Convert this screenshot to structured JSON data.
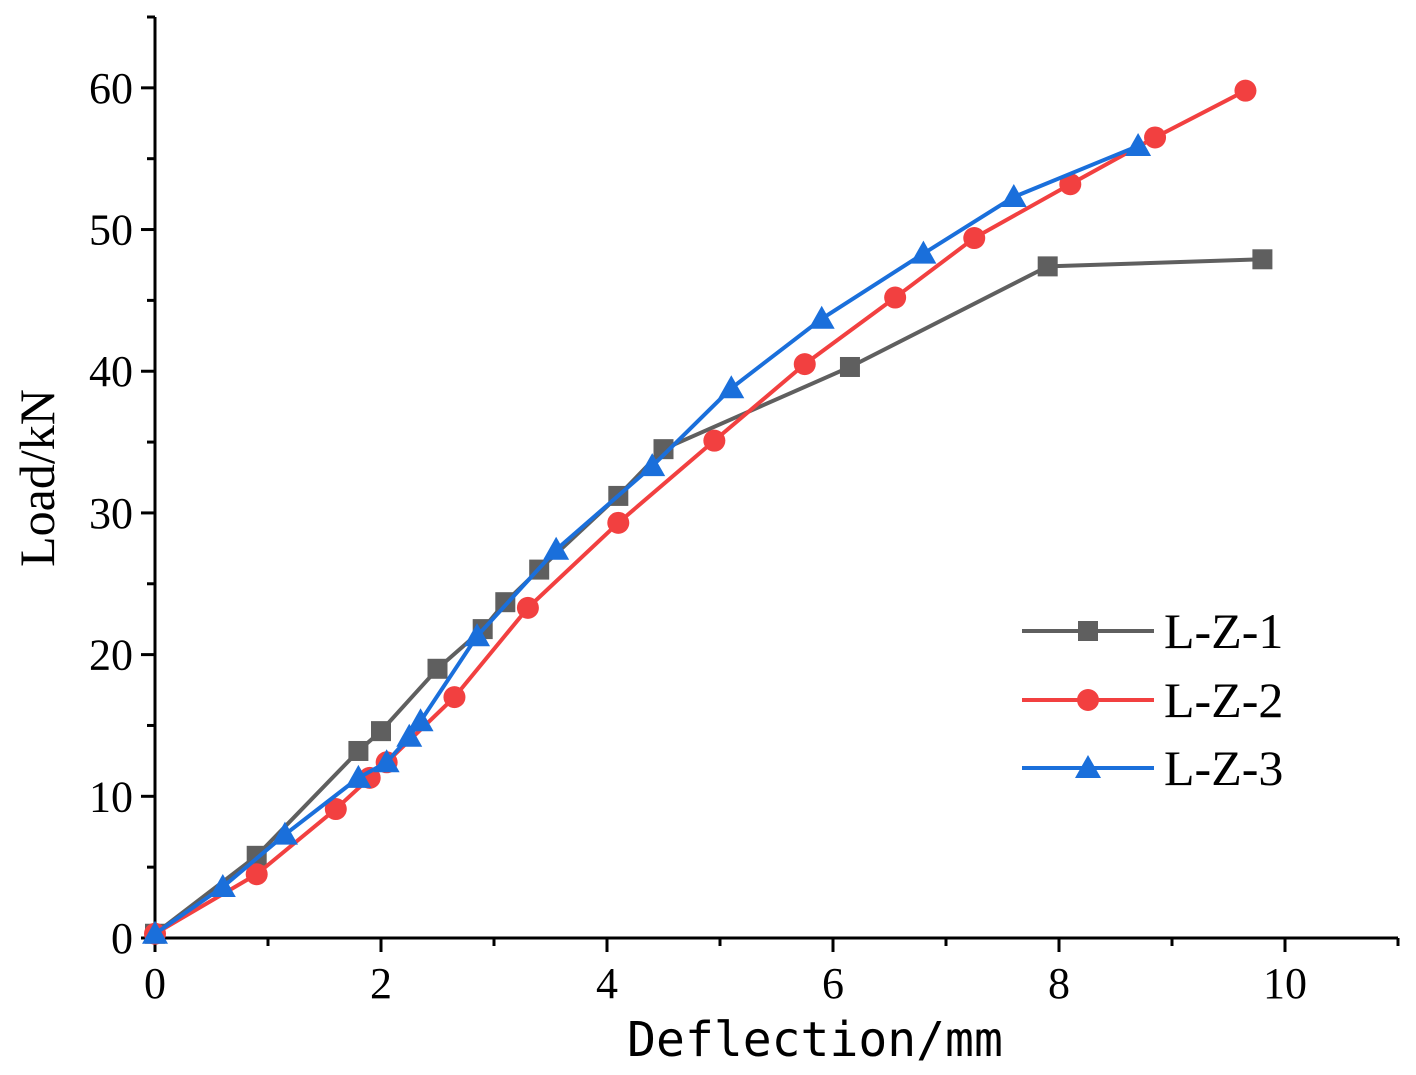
{
  "chart_data": {
    "type": "line",
    "title": "",
    "xlabel": "Deflection/mm",
    "ylabel": "Load/kN",
    "xlim": [
      0,
      11
    ],
    "ylim": [
      0,
      65
    ],
    "xticks": [
      0,
      2,
      4,
      6,
      8,
      10
    ],
    "yticks": [
      0,
      10,
      20,
      30,
      40,
      50,
      60
    ],
    "grid": false,
    "legend_position": "lower-right",
    "series": [
      {
        "name": "L-Z-1",
        "color": "#5f5f5f",
        "marker": "square",
        "x": [
          0.0,
          0.9,
          1.8,
          2.0,
          2.5,
          2.9,
          3.1,
          3.4,
          4.1,
          4.5,
          6.15,
          7.9,
          9.8
        ],
        "y": [
          0.3,
          5.8,
          13.2,
          14.6,
          19.0,
          21.8,
          23.7,
          26.0,
          31.2,
          34.5,
          40.3,
          47.4,
          47.9
        ]
      },
      {
        "name": "L-Z-2",
        "color": "#f24040",
        "marker": "circle",
        "x": [
          0.0,
          0.9,
          1.6,
          1.9,
          2.05,
          2.65,
          3.3,
          4.1,
          4.95,
          5.75,
          6.55,
          7.25,
          8.1,
          8.85,
          9.65
        ],
        "y": [
          0.3,
          4.5,
          9.1,
          11.3,
          12.4,
          17.0,
          23.3,
          29.3,
          35.1,
          40.5,
          45.2,
          49.4,
          53.2,
          56.5,
          59.8
        ]
      },
      {
        "name": "L-Z-3",
        "color": "#1a6fdb",
        "marker": "triangle",
        "x": [
          0.0,
          0.6,
          1.15,
          1.8,
          2.05,
          2.25,
          2.35,
          2.85,
          3.55,
          4.4,
          5.1,
          5.9,
          6.8,
          7.6,
          8.7
        ],
        "y": [
          0.3,
          3.6,
          7.3,
          11.3,
          12.4,
          14.2,
          15.3,
          21.3,
          27.4,
          33.3,
          38.8,
          43.7,
          48.3,
          52.3,
          55.9
        ]
      }
    ]
  }
}
